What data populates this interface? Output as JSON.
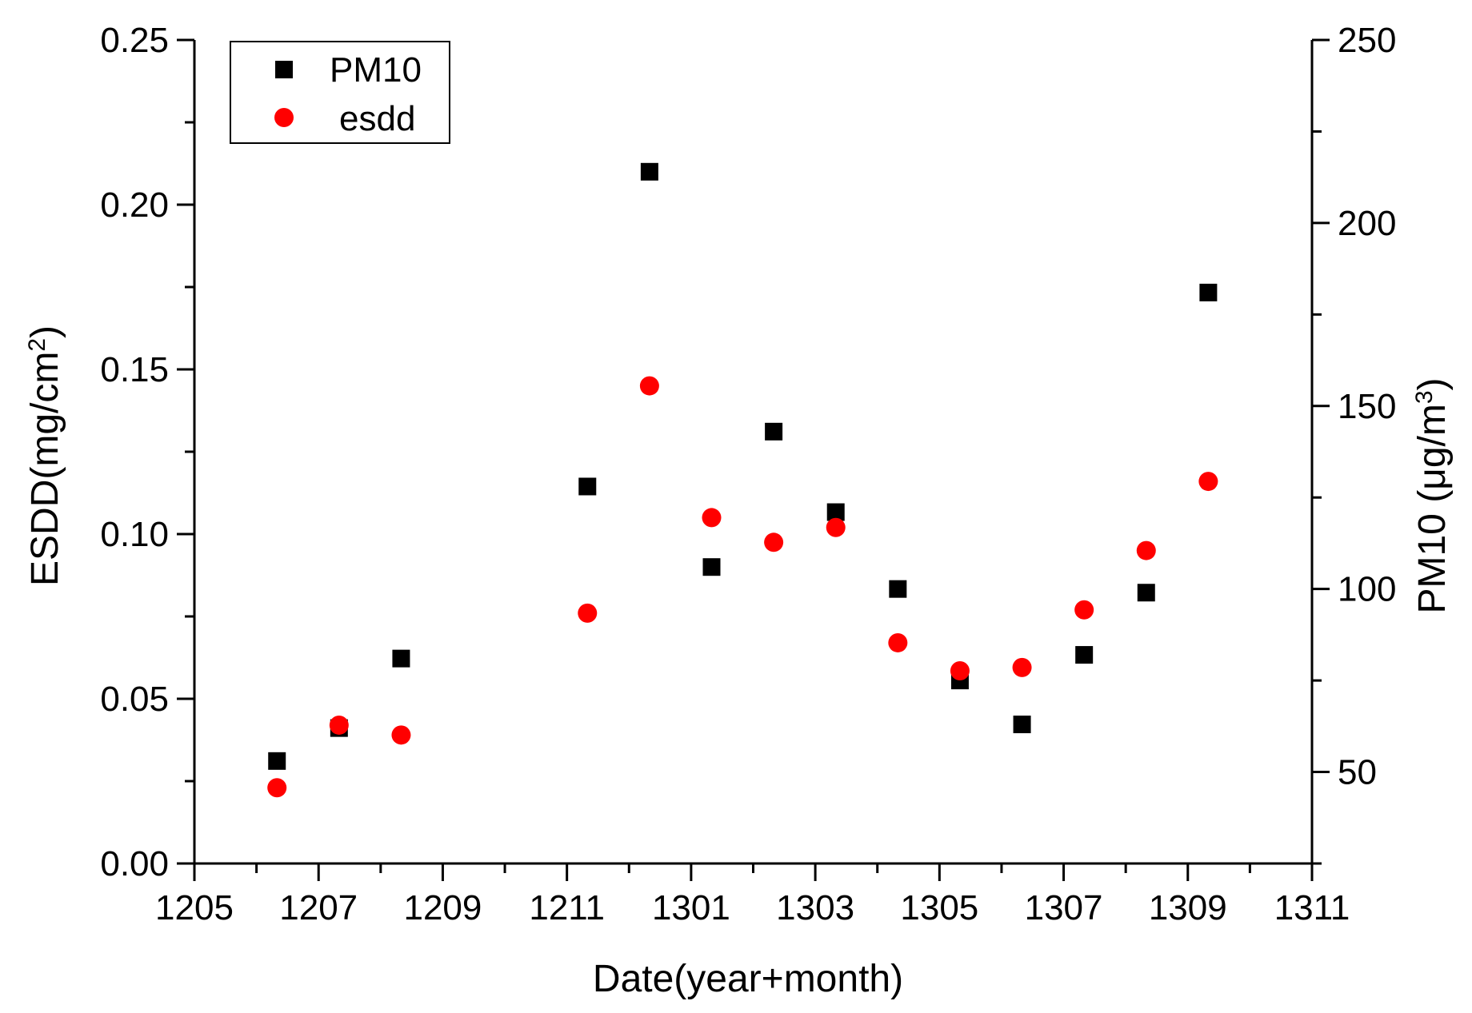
{
  "chart_data": {
    "type": "scatter",
    "xlabel": "Date(year+month)",
    "ylabel_left": {
      "main": "ESDD(mg/cm",
      "sup": "2",
      "close": ")"
    },
    "ylabel_right": {
      "main": "PM10 (μg/m",
      "sup": "3",
      "close": ")"
    },
    "x_tick_labels": [
      "1205",
      "1207",
      "1209",
      "1211",
      "1301",
      "1303",
      "1305",
      "1307",
      "1309",
      "1311"
    ],
    "x_categories": [
      "1206",
      "1207",
      "1208",
      "1211",
      "1212",
      "1301",
      "1302",
      "1303",
      "1304",
      "1305",
      "1306",
      "1307",
      "1308",
      "1309"
    ],
    "xlim": [
      0,
      18
    ],
    "y_left": {
      "min": 0,
      "max": 0.25,
      "ticks": [
        "0.00",
        "0.05",
        "0.10",
        "0.15",
        "0.20",
        "0.25"
      ]
    },
    "y_right": {
      "min": 25,
      "max": 250,
      "ticks": [
        "50",
        "100",
        "150",
        "200",
        "250"
      ]
    },
    "legend_position": "top-left",
    "series": [
      {
        "name": "PM10",
        "axis": "right",
        "marker": "square",
        "color": "#000000",
        "x": [
          1.33,
          2.33,
          3.33,
          6.33,
          7.33,
          8.33,
          9.33,
          10.33,
          11.33,
          12.33,
          13.33,
          14.33,
          15.33,
          16.33
        ],
        "values": [
          53,
          62,
          81,
          128,
          214,
          106,
          143,
          121,
          100,
          75,
          63,
          82,
          99,
          181
        ]
      },
      {
        "name": "esdd",
        "axis": "left",
        "marker": "circle",
        "color": "#ff0000",
        "x": [
          1.33,
          2.33,
          3.33,
          6.33,
          7.33,
          8.33,
          9.33,
          10.33,
          11.33,
          12.33,
          13.33,
          14.33,
          15.33,
          16.33
        ],
        "values": [
          0.023,
          0.042,
          0.039,
          0.076,
          0.145,
          0.105,
          0.0975,
          0.102,
          0.067,
          0.0585,
          0.0595,
          0.077,
          0.095,
          0.116
        ]
      }
    ]
  }
}
